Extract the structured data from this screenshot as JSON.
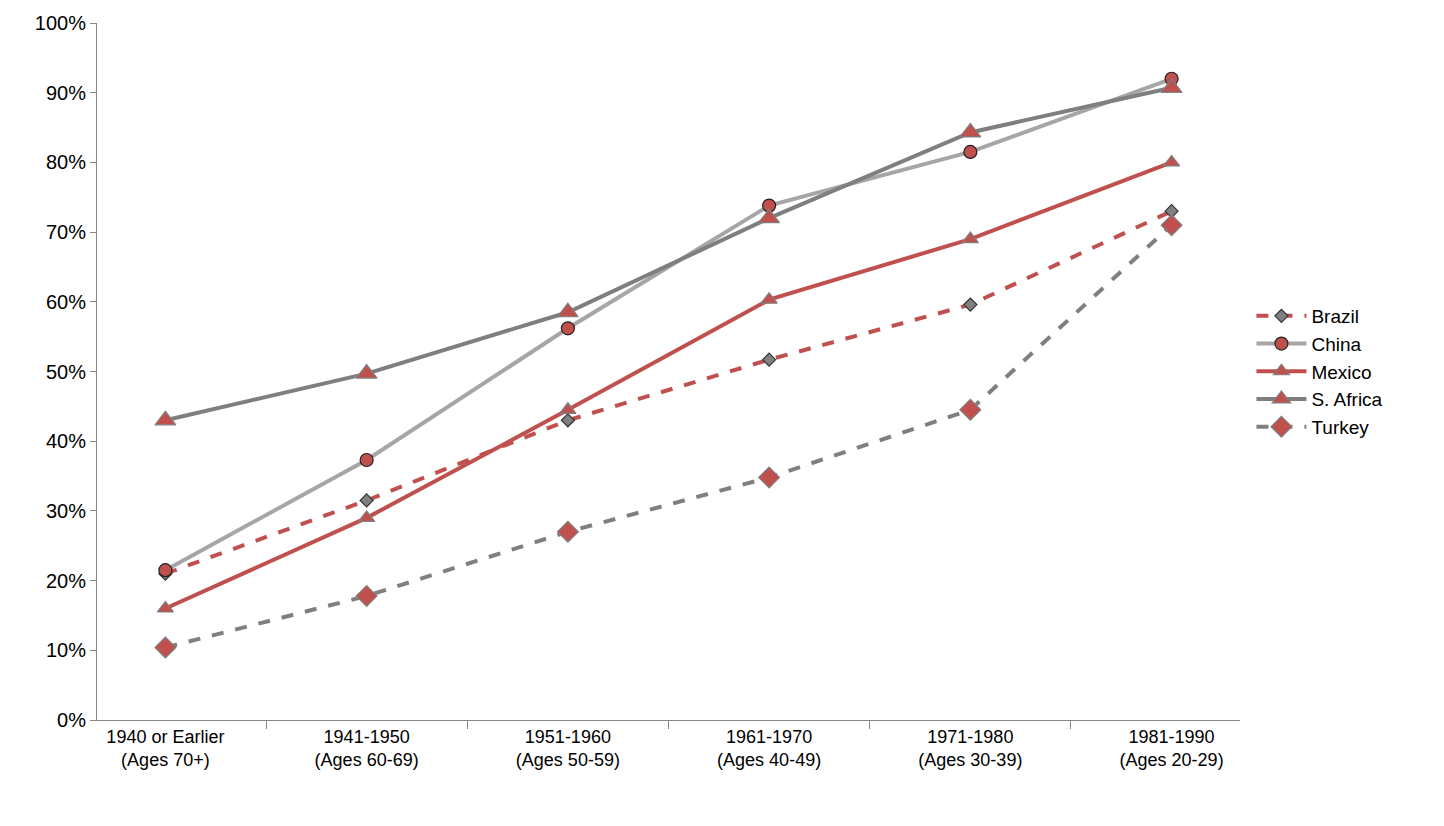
{
  "chart_data": {
    "type": "line",
    "categories": [
      "1940 or Earlier\n(Ages 70+)",
      "1941-1950\n(Ages 60-69)",
      "1951-1960\n(Ages 50-59)",
      "1961-1970\n(Ages 40-49)",
      "1971-1980\n(Ages 30-39)",
      "1981-1990\n(Ages 20-29)"
    ],
    "series": [
      {
        "name": "Brazil",
        "color": "#c0504d",
        "line_style": "dashed",
        "marker": "diamond",
        "values": [
          21,
          31.5,
          43,
          51.7,
          59.6,
          73
        ]
      },
      {
        "name": "China",
        "color": "#a6a6a6",
        "line_style": "solid",
        "marker": "circle",
        "values": [
          21.5,
          37.3,
          56.2,
          73.8,
          81.5,
          92
        ]
      },
      {
        "name": "Mexico",
        "color": "#c0504d",
        "line_style": "solid",
        "marker": "triangle",
        "values": [
          16,
          29,
          44.5,
          60.3,
          69,
          80
        ]
      },
      {
        "name": "S. Africa",
        "color": "#7f7f7f",
        "line_style": "solid",
        "marker": "triangle",
        "values": [
          43,
          49.7,
          58.5,
          72,
          84.3,
          90.7
        ]
      },
      {
        "name": "Turkey",
        "color": "#7f7f7f",
        "line_style": "dashed",
        "marker": "diamond",
        "values": [
          10.4,
          17.8,
          27,
          34.8,
          44.5,
          71
        ]
      }
    ],
    "ylim": [
      0,
      100
    ],
    "yticks": [
      {
        "value": 0,
        "label": "0%"
      },
      {
        "value": 10,
        "label": "10%"
      },
      {
        "value": 20,
        "label": "20%"
      },
      {
        "value": 30,
        "label": "30%"
      },
      {
        "value": 40,
        "label": "40%"
      },
      {
        "value": 50,
        "label": "50%"
      },
      {
        "value": 60,
        "label": "60%"
      },
      {
        "value": 70,
        "label": "70%"
      },
      {
        "value": 80,
        "label": "80%"
      },
      {
        "value": 90,
        "label": "90%"
      },
      {
        "value": 100,
        "label": "100%"
      }
    ],
    "grid": false,
    "legend": "right"
  }
}
